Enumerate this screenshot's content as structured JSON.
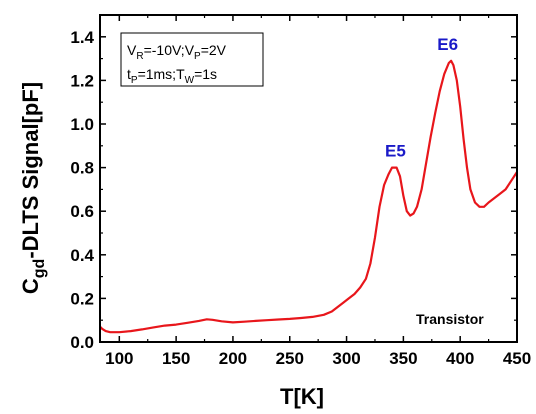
{
  "chart_data": {
    "type": "line",
    "xlabel": "T[K]",
    "ylabel_main": "C",
    "ylabel_sub": "gd",
    "ylabel_rest": "-DLTS Signal[pF]",
    "xlim": [
      83,
      450
    ],
    "ylim": [
      0.0,
      1.5
    ],
    "x_ticks": [
      100,
      150,
      200,
      250,
      300,
      350,
      400,
      450
    ],
    "y_ticks": [
      0.0,
      0.2,
      0.4,
      0.6,
      0.8,
      1.0,
      1.2,
      1.4
    ],
    "x_tick_labels": [
      "100",
      "150",
      "200",
      "250",
      "300",
      "350",
      "400",
      "450"
    ],
    "y_tick_labels": [
      "0.0",
      "0.2",
      "0.4",
      "0.6",
      "0.8",
      "1.0",
      "1.2",
      "1.4"
    ],
    "grid": false,
    "line_color": "#e8161b",
    "series": [
      {
        "points": [
          [
            83,
            0.07
          ],
          [
            85,
            0.06
          ],
          [
            88,
            0.05
          ],
          [
            92,
            0.045
          ],
          [
            100,
            0.045
          ],
          [
            110,
            0.05
          ],
          [
            120,
            0.058
          ],
          [
            130,
            0.067
          ],
          [
            140,
            0.075
          ],
          [
            150,
            0.08
          ],
          [
            160,
            0.088
          ],
          [
            170,
            0.097
          ],
          [
            177,
            0.104
          ],
          [
            182,
            0.102
          ],
          [
            190,
            0.095
          ],
          [
            200,
            0.09
          ],
          [
            210,
            0.093
          ],
          [
            220,
            0.097
          ],
          [
            230,
            0.1
          ],
          [
            240,
            0.103
          ],
          [
            250,
            0.106
          ],
          [
            260,
            0.11
          ],
          [
            270,
            0.115
          ],
          [
            280,
            0.125
          ],
          [
            287,
            0.14
          ],
          [
            292,
            0.16
          ],
          [
            297,
            0.18
          ],
          [
            302,
            0.2
          ],
          [
            307,
            0.22
          ],
          [
            312,
            0.25
          ],
          [
            317,
            0.29
          ],
          [
            321,
            0.36
          ],
          [
            325,
            0.48
          ],
          [
            329,
            0.62
          ],
          [
            333,
            0.72
          ],
          [
            337,
            0.77
          ],
          [
            340,
            0.8
          ],
          [
            344,
            0.8
          ],
          [
            347,
            0.76
          ],
          [
            350,
            0.67
          ],
          [
            353,
            0.6
          ],
          [
            356,
            0.58
          ],
          [
            359,
            0.59
          ],
          [
            362,
            0.62
          ],
          [
            366,
            0.7
          ],
          [
            370,
            0.82
          ],
          [
            374,
            0.94
          ],
          [
            378,
            1.05
          ],
          [
            382,
            1.15
          ],
          [
            386,
            1.23
          ],
          [
            390,
            1.28
          ],
          [
            392,
            1.29
          ],
          [
            394,
            1.27
          ],
          [
            397,
            1.2
          ],
          [
            400,
            1.08
          ],
          [
            403,
            0.93
          ],
          [
            406,
            0.8
          ],
          [
            409,
            0.7
          ],
          [
            413,
            0.64
          ],
          [
            417,
            0.62
          ],
          [
            421,
            0.62
          ],
          [
            425,
            0.64
          ],
          [
            430,
            0.66
          ],
          [
            435,
            0.68
          ],
          [
            440,
            0.7
          ],
          [
            445,
            0.74
          ],
          [
            450,
            0.78
          ]
        ]
      }
    ],
    "annotations": [
      {
        "text": "E5",
        "x": 343,
        "y": 0.85
      },
      {
        "text": "E6",
        "x": 389,
        "y": 1.34
      }
    ],
    "inset_label": "Transistor",
    "params": {
      "line1": {
        "a": "V",
        "a_sub": "R",
        "a_val": "=-10V;",
        "b": "V",
        "b_sub": "P",
        "b_val": "=2V"
      },
      "line2": {
        "a": "t",
        "a_sub": "P",
        "a_val": "=1ms;",
        "b": "T",
        "b_sub": "W",
        "b_val": "=1s"
      }
    }
  }
}
